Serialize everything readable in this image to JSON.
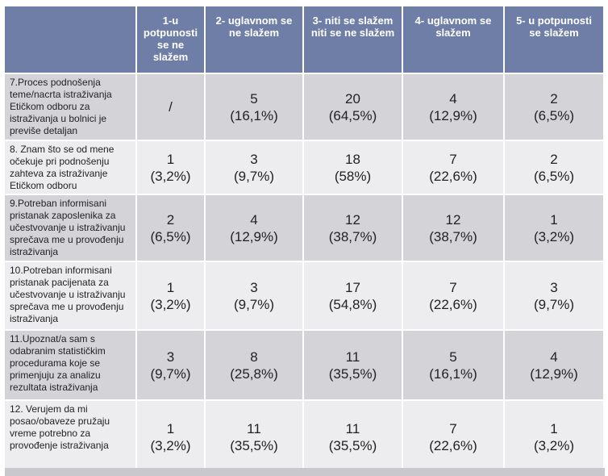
{
  "table": {
    "header": [
      "1-u potpunosti se ne slažem",
      "2- uglavnom se ne slažem",
      "3- niti se slažem niti se ne slažem",
      "4- uglavnom se slažem",
      "5- u potpunosti se slažem"
    ],
    "rows": [
      {
        "label": "7.Proces podnošenja teme/nacrta istraživanja Etičkom odboru za istraživanja u bolnici je previše detaljan",
        "cells": [
          {
            "count": "/"
          },
          {
            "count": "5",
            "percent": "(16,1%)"
          },
          {
            "count": "20",
            "percent": "(64,5%)"
          },
          {
            "count": "4",
            "percent": "(12,9%)"
          },
          {
            "count": "2",
            "percent": "(6,5%)"
          }
        ]
      },
      {
        "label": "8. Znam što se od mene očekuje pri podnošenju zahteva za istraživanje Etičkom odboru",
        "cells": [
          {
            "count": "1",
            "percent": "(3,2%)"
          },
          {
            "count": "3",
            "percent": "(9,7%)"
          },
          {
            "count": "18",
            "percent": "(58%)"
          },
          {
            "count": "7",
            "percent": "(22,6%)"
          },
          {
            "count": "2",
            "percent": "(6,5%)"
          }
        ]
      },
      {
        "label": "9.Potreban informisani pristanak zaposlenika za učestvovanje u istraživanju sprečava me u provođenju istraživanja",
        "cells": [
          {
            "count": "2",
            "percent": "(6,5%)"
          },
          {
            "count": "4",
            "percent": "(12,9%)"
          },
          {
            "count": "12",
            "percent": "(38,7%)"
          },
          {
            "count": "12",
            "percent": "(38,7%)"
          },
          {
            "count": "1",
            "percent": "(3,2%)"
          }
        ]
      },
      {
        "label": "10.Potreban informisani pristanak pacijenata za učestvovanje u istraživanju sprečava me u provođenju istraživanja",
        "cells": [
          {
            "count": "1",
            "percent": "(3,2%)"
          },
          {
            "count": "3",
            "percent": "(9,7%)"
          },
          {
            "count": "17",
            "percent": "(54,8%)"
          },
          {
            "count": "7",
            "percent": "(22,6%)"
          },
          {
            "count": "3",
            "percent": "(9,7%)"
          }
        ]
      },
      {
        "label": "11.Upoznat/a sam s odabranim statističkim procedurama koje se primenjuju za analizu rezultata istraživanja",
        "cells": [
          {
            "count": "3",
            "percent": "(9,7%)"
          },
          {
            "count": "8",
            "percent": "(25,8%)"
          },
          {
            "count": "11",
            "percent": "(35,5%)"
          },
          {
            "count": "5",
            "percent": "(16,1%)"
          },
          {
            "count": "4",
            "percent": "(12,9%)"
          }
        ]
      },
      {
        "label": "12. Verujem da mi posao/obaveze pružaju vreme potrebno za provođenje istraživanja",
        "cells": [
          {
            "count": "1",
            "percent": "(3,2%)"
          },
          {
            "count": "11",
            "percent": "(35,5%)"
          },
          {
            "count": "11",
            "percent": "(35,5%)"
          },
          {
            "count": "7",
            "percent": "(22,6%)"
          },
          {
            "count": "1",
            "percent": "(3,2%)"
          }
        ]
      }
    ]
  }
}
